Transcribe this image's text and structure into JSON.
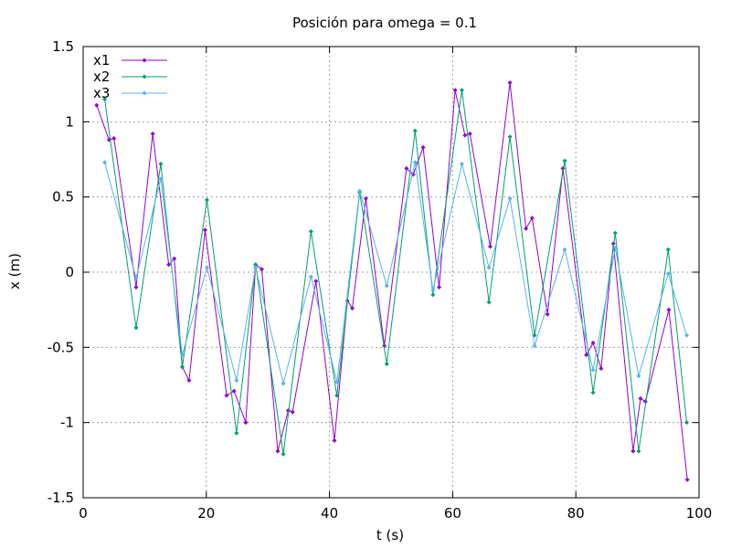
{
  "chart_data": {
    "type": "line",
    "title": "Posición para omega = 0.1",
    "xlabel": "t (s)",
    "ylabel": "x (m)",
    "xlim": [
      0,
      100
    ],
    "ylim": [
      -1.5,
      1.5
    ],
    "xticks": [
      0,
      20,
      40,
      60,
      80,
      100
    ],
    "yticks": [
      -1.5,
      -1,
      -0.5,
      0,
      0.5,
      1,
      1.5
    ],
    "xtick_labels": [
      "0",
      "20",
      "40",
      "60",
      "80",
      "100"
    ],
    "ytick_labels": [
      "-1.5",
      "-1",
      "-0.5",
      "0",
      "0.5",
      "1",
      "1.5"
    ],
    "grid": true,
    "legend_position": "top-left",
    "series": [
      {
        "name": "x1",
        "color": "#9400d3",
        "x": [
          2.2,
          4.2,
          5.0,
          8.6,
          11.3,
          13.9,
          14.8,
          16.1,
          17.2,
          19.8,
          23.3,
          24.5,
          26.4,
          28.0,
          29.0,
          31.6,
          33.3,
          34.0,
          37.8,
          40.8,
          42.9,
          43.7,
          45.9,
          48.9,
          52.5,
          53.6,
          55.2,
          57.8,
          60.4,
          62.0,
          62.8,
          66.1,
          69.3,
          71.9,
          72.9,
          75.4,
          77.9,
          81.7,
          82.8,
          84.1,
          86.1,
          89.3,
          90.5,
          91.3,
          95.1,
          98.1
        ],
        "y": [
          1.11,
          0.88,
          0.89,
          -0.1,
          0.92,
          0.05,
          0.09,
          -0.63,
          -0.72,
          0.28,
          -0.82,
          -0.79,
          -1.0,
          0.05,
          0.02,
          -1.19,
          -0.92,
          -0.93,
          -0.06,
          -1.12,
          -0.19,
          -0.24,
          0.49,
          -0.49,
          0.69,
          0.65,
          0.83,
          -0.1,
          1.21,
          0.91,
          0.92,
          0.17,
          1.26,
          0.29,
          0.36,
          -0.28,
          0.69,
          -0.55,
          -0.47,
          -0.64,
          0.19,
          -1.19,
          -0.84,
          -0.86,
          -0.25,
          -1.38
        ]
      },
      {
        "name": "x2",
        "color": "#009e73",
        "x": [
          3.5,
          8.6,
          12.6,
          16.1,
          20.1,
          24.9,
          28.0,
          32.5,
          37.0,
          41.2,
          44.9,
          49.3,
          53.9,
          56.8,
          61.5,
          65.9,
          69.3,
          73.3,
          78.2,
          82.8,
          86.4,
          90.2,
          95.0,
          98.0
        ],
        "y": [
          1.15,
          -0.37,
          0.72,
          -0.63,
          0.48,
          -1.07,
          0.05,
          -1.21,
          0.27,
          -0.82,
          0.53,
          -0.61,
          0.94,
          -0.15,
          1.21,
          -0.2,
          0.9,
          -0.42,
          0.74,
          -0.8,
          0.26,
          -1.19,
          0.15,
          -1.0
        ],
        "y_end_note": ""
      },
      {
        "name": "x3",
        "color": "#56b4e9",
        "x": [
          3.5,
          8.6,
          12.6,
          16.1,
          20.1,
          24.9,
          28.0,
          32.5,
          37.0,
          41.2,
          44.9,
          49.3,
          53.9,
          56.8,
          61.5,
          65.9,
          69.3,
          73.3,
          78.2,
          82.8,
          86.4,
          90.2,
          95.0,
          98.0
        ],
        "y": [
          0.73,
          -0.04,
          0.62,
          -0.55,
          0.03,
          -0.72,
          0.03,
          -0.74,
          -0.03,
          -0.73,
          0.54,
          -0.09,
          0.73,
          -0.12,
          0.72,
          0.03,
          0.49,
          -0.49,
          0.15,
          -0.65,
          0.16,
          -0.69,
          -0.01,
          -0.42
        ]
      }
    ]
  }
}
